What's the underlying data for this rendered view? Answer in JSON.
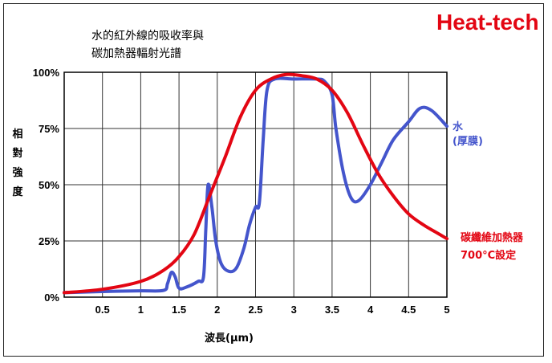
{
  "brand": "Heat-tech",
  "colors": {
    "water": "#4455cc",
    "heater": "#e30613",
    "grid": "#333333"
  },
  "chart_data": {
    "type": "line",
    "title_lines": [
      "水的紅外線的吸收率與",
      "碳加熱器輻射光譜"
    ],
    "xlabel": "波長(μm)",
    "ylabel_chars": [
      "相",
      "對",
      "強",
      "度"
    ],
    "xlim": [
      0,
      5
    ],
    "ylim": [
      0,
      100
    ],
    "x_ticks": [
      0.5,
      1,
      1.5,
      2,
      2.5,
      3,
      3.5,
      4,
      4.5,
      5
    ],
    "x_tick_labels": [
      "0.5",
      "1",
      "1.5",
      "2",
      "2.5",
      "3",
      "3.5",
      "4",
      "4.5",
      "5"
    ],
    "y_ticks": [
      0,
      25,
      50,
      75,
      100
    ],
    "y_tick_labels": [
      "0%",
      "25%",
      "50%",
      "75%",
      "100%"
    ],
    "grid": true,
    "series": [
      {
        "name": "水(厚膜)",
        "name_lines": [
          "水",
          "(厚膜)"
        ],
        "color": "#4455cc",
        "points": [
          [
            0,
            2
          ],
          [
            0.5,
            2.5
          ],
          [
            1.0,
            2.8
          ],
          [
            1.3,
            3
          ],
          [
            1.35,
            6
          ],
          [
            1.4,
            11
          ],
          [
            1.45,
            9
          ],
          [
            1.5,
            4
          ],
          [
            1.6,
            4.5
          ],
          [
            1.75,
            7
          ],
          [
            1.82,
            9
          ],
          [
            1.85,
            30
          ],
          [
            1.88,
            50
          ],
          [
            1.93,
            40
          ],
          [
            1.98,
            25
          ],
          [
            2.05,
            15
          ],
          [
            2.15,
            11.5
          ],
          [
            2.25,
            13
          ],
          [
            2.35,
            22
          ],
          [
            2.42,
            32
          ],
          [
            2.5,
            40
          ],
          [
            2.55,
            42
          ],
          [
            2.6,
            70
          ],
          [
            2.65,
            92
          ],
          [
            2.75,
            97
          ],
          [
            3.0,
            97
          ],
          [
            3.3,
            97
          ],
          [
            3.4,
            96
          ],
          [
            3.5,
            90
          ],
          [
            3.55,
            75
          ],
          [
            3.65,
            55
          ],
          [
            3.75,
            44
          ],
          [
            3.85,
            43
          ],
          [
            4.0,
            50
          ],
          [
            4.15,
            60
          ],
          [
            4.3,
            70
          ],
          [
            4.5,
            78
          ],
          [
            4.65,
            84
          ],
          [
            4.8,
            83
          ],
          [
            5.0,
            76
          ]
        ]
      },
      {
        "name": "碳纖維加熱器 700°C設定",
        "name_lines": [
          "碳纖維加熱器",
          "700°C設定"
        ],
        "color": "#e30613",
        "points": [
          [
            0,
            2
          ],
          [
            0.5,
            3.5
          ],
          [
            1.0,
            7
          ],
          [
            1.3,
            12
          ],
          [
            1.5,
            18
          ],
          [
            1.7,
            28
          ],
          [
            1.9,
            45
          ],
          [
            2.1,
            62
          ],
          [
            2.3,
            80
          ],
          [
            2.5,
            92
          ],
          [
            2.7,
            97
          ],
          [
            2.9,
            99
          ],
          [
            3.1,
            98.5
          ],
          [
            3.3,
            97
          ],
          [
            3.5,
            92
          ],
          [
            3.7,
            82
          ],
          [
            3.9,
            68
          ],
          [
            4.1,
            55
          ],
          [
            4.3,
            45
          ],
          [
            4.5,
            37
          ],
          [
            4.7,
            32
          ],
          [
            4.85,
            29
          ],
          [
            5.0,
            26
          ]
        ]
      }
    ]
  }
}
